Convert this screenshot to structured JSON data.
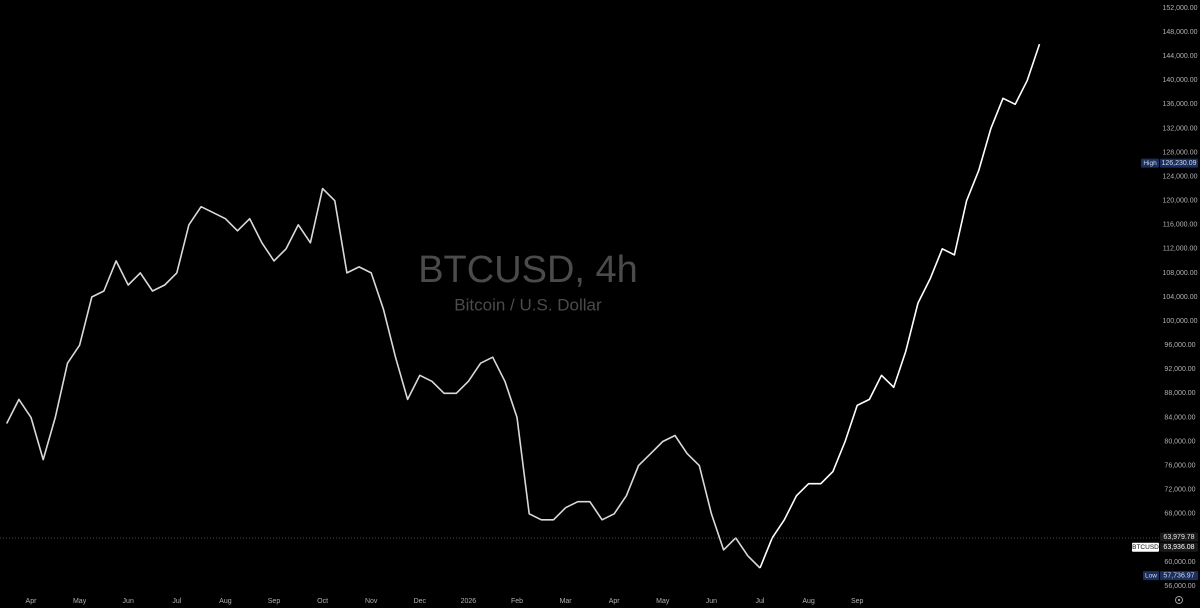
{
  "chart_data": {
    "type": "line",
    "title": "BTCUSD, 4h",
    "subtitle": "Bitcoin / U.S. Dollar",
    "categories": [
      null,
      null,
      "Apr",
      null,
      null,
      null,
      "May",
      null,
      null,
      null,
      "Jun",
      null,
      null,
      null,
      "Jul",
      null,
      null,
      null,
      "Aug",
      null,
      null,
      null,
      "Sep",
      null,
      null,
      null,
      "Oct",
      null,
      null,
      null,
      "Nov",
      null,
      null,
      null,
      "Dec",
      null,
      null,
      null,
      "2026",
      null,
      null,
      null,
      "Feb",
      null,
      null,
      null,
      "Mar",
      null,
      null,
      null,
      "Apr",
      null,
      null,
      null,
      "May",
      null,
      null,
      null,
      "Jun",
      null,
      null,
      null,
      "Jul",
      null,
      null,
      null,
      "Aug",
      null,
      null,
      null,
      "Sep",
      null,
      null,
      null,
      null,
      null,
      null,
      null,
      null,
      null,
      null,
      null,
      null,
      null,
      null,
      null
    ],
    "series": [
      {
        "color": "#d9d9d9",
        "values": [
          83000,
          87000,
          84000,
          77000,
          84000,
          93000,
          96000,
          104000,
          105000,
          110000,
          106000,
          108000,
          105000,
          106000,
          108000,
          116000,
          119000,
          118000,
          117000,
          115000,
          117000,
          113000,
          110000,
          112000,
          116000,
          113000,
          122000,
          120000,
          108000,
          109000,
          108000,
          102000,
          94000,
          87000,
          91000,
          90000,
          88000,
          88000,
          90000,
          93000,
          94000,
          90000,
          84000,
          68000,
          67000,
          67000,
          69000,
          70000,
          70000,
          67000,
          68000,
          71000,
          76000,
          78000,
          80000,
          81000,
          78000,
          76000,
          68000,
          62000,
          64000,
          61000,
          59000,
          null,
          null,
          null,
          null,
          null,
          null,
          null,
          null,
          null,
          null,
          null,
          null,
          null,
          null,
          null,
          null,
          null,
          null,
          null,
          null,
          null,
          null,
          null
        ]
      },
      {
        "color": "#ffffff",
        "values": [
          null,
          null,
          null,
          null,
          null,
          null,
          null,
          null,
          null,
          null,
          null,
          null,
          null,
          null,
          null,
          null,
          null,
          null,
          null,
          null,
          null,
          null,
          null,
          null,
          null,
          null,
          null,
          null,
          null,
          null,
          null,
          null,
          null,
          null,
          null,
          null,
          null,
          null,
          null,
          null,
          null,
          null,
          null,
          null,
          null,
          null,
          null,
          null,
          null,
          null,
          null,
          null,
          null,
          null,
          null,
          null,
          null,
          null,
          null,
          null,
          null,
          null,
          59000,
          64000,
          67000,
          71000,
          73000,
          73000,
          75000,
          80000,
          86000,
          87000,
          91000,
          89000,
          95000,
          103000,
          107000,
          112000,
          111000,
          120000,
          125000,
          132000,
          137000,
          136000,
          140000,
          146000
        ]
      }
    ],
    "ylim": [
      52350,
      152000
    ],
    "yticks": [
      {
        "value": 56000,
        "label": "56,000.00"
      },
      {
        "value": 60000,
        "label": "60,000.00"
      },
      {
        "value": 64000,
        "label": "64,000.00"
      },
      {
        "value": 68000,
        "label": "68,000.00"
      },
      {
        "value": 72000,
        "label": "72,000.00"
      },
      {
        "value": 76000,
        "label": "76,000.00"
      },
      {
        "value": 80000,
        "label": "80,000.00"
      },
      {
        "value": 84000,
        "label": "84,000.00"
      },
      {
        "value": 88000,
        "label": "88,000.00"
      },
      {
        "value": 92000,
        "label": "92,000.00"
      },
      {
        "value": 96000,
        "label": "96,000.00"
      },
      {
        "value": 100000,
        "label": "100,000.00"
      },
      {
        "value": 104000,
        "label": "104,000.00"
      },
      {
        "value": 108000,
        "label": "108,000.00"
      },
      {
        "value": 112000,
        "label": "112,000.00"
      },
      {
        "value": 116000,
        "label": "116,000.00"
      },
      {
        "value": 120000,
        "label": "120,000.00"
      },
      {
        "value": 124000,
        "label": "124,000.00"
      },
      {
        "value": 128000,
        "label": "128,000.00"
      },
      {
        "value": 132000,
        "label": "132,000.00"
      },
      {
        "value": 136000,
        "label": "136,000.00"
      },
      {
        "value": 140000,
        "label": "140,000.00"
      },
      {
        "value": 144000,
        "label": "144,000.00"
      },
      {
        "value": 148000,
        "label": "148,000.00"
      },
      {
        "value": 152000,
        "label": "152,000.00"
      }
    ],
    "price_labels": {
      "high": {
        "tag": "High",
        "value": 126230.09,
        "label": "126,230.09"
      },
      "last": {
        "value": 63979.78,
        "label": "63,979.78"
      },
      "symbol": {
        "tag": "BTCUSD",
        "value": 63936.08,
        "label": "63,936.08"
      },
      "low": {
        "tag": "Low",
        "value": 57736.97,
        "label": "57,736.97"
      }
    }
  }
}
